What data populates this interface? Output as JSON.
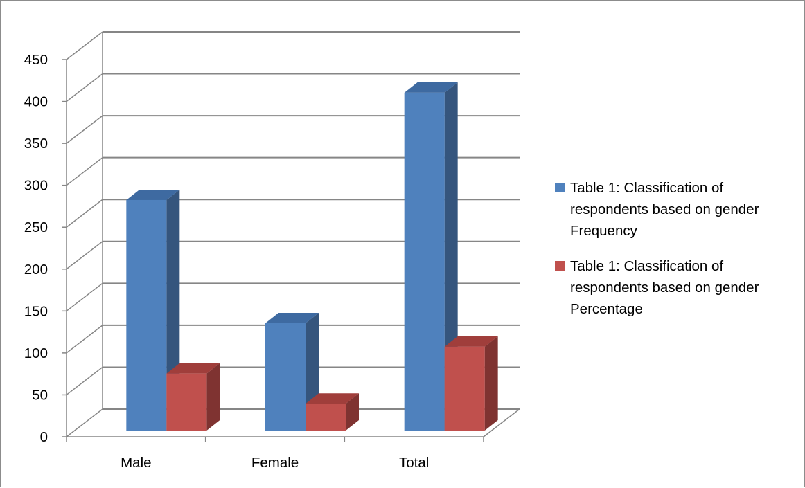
{
  "chart_data": {
    "type": "bar",
    "subtype": "3d-clustered-column",
    "title": "",
    "xlabel": "",
    "ylabel": "",
    "categories": [
      "Male",
      "Female",
      "Total"
    ],
    "series": [
      {
        "name": "Table 1: Classification of respondents based on gender Frequency",
        "values": [
          275,
          128,
          403
        ],
        "color": "#4f81bd",
        "side_color": "#35557d",
        "top_color": "#3e6aa1"
      },
      {
        "name": "Table 1: Classification of respondents based on gender Percentage",
        "values": [
          68,
          32,
          100
        ],
        "color": "#c0504d",
        "side_color": "#7f3331",
        "top_color": "#a03e3b"
      }
    ],
    "ylim": [
      0,
      450
    ],
    "yticks": [
      0,
      50,
      100,
      150,
      200,
      250,
      300,
      350,
      400,
      450
    ],
    "ytick_labels": [
      "0",
      "50",
      "100",
      "150",
      "200",
      "250",
      "300",
      "350",
      "400",
      "450"
    ],
    "grid": true,
    "legend_position": "right"
  }
}
